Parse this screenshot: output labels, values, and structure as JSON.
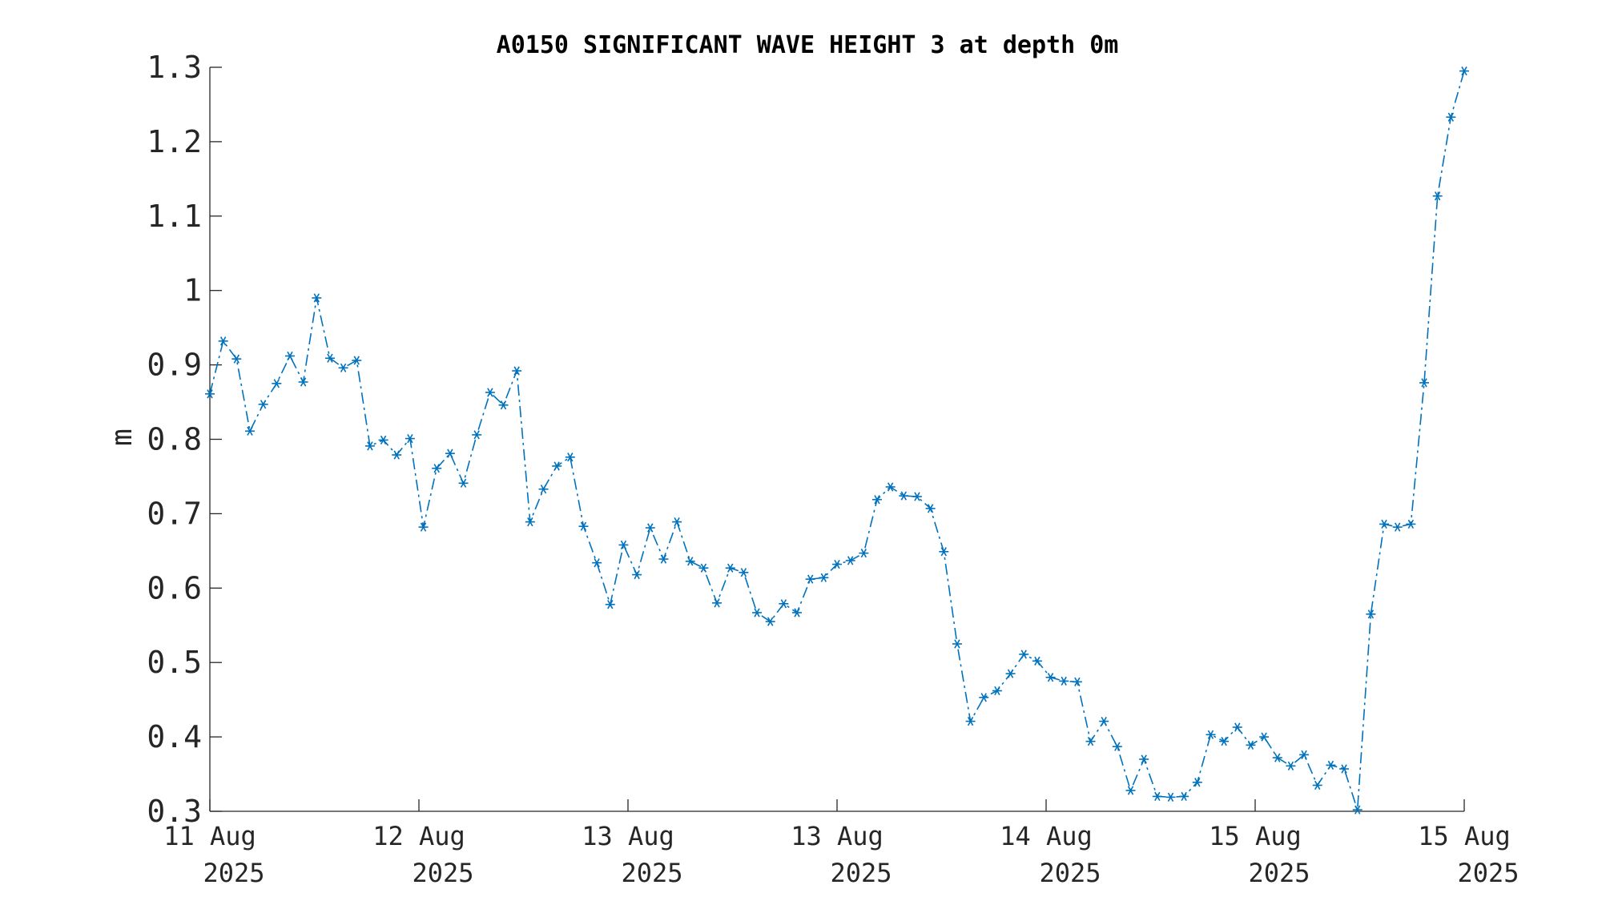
{
  "chart_data": {
    "type": "line",
    "title": "A0150 SIGNIFICANT WAVE HEIGHT 3 at depth 0m",
    "xlabel": "",
    "ylabel": "m",
    "ylim": [
      0.3,
      1.3
    ],
    "yticks": [
      "0.3",
      "0.4",
      "0.5",
      "0.6",
      "0.7",
      "0.8",
      "0.9",
      "1",
      "1.1",
      "1.2",
      "1.3"
    ],
    "xticks": [
      {
        "line1": "11 Aug",
        "line2": "2025"
      },
      {
        "line1": "12 Aug",
        "line2": "2025"
      },
      {
        "line1": "13 Aug",
        "line2": "2025"
      },
      {
        "line1": "13 Aug",
        "line2": "2025"
      },
      {
        "line1": "14 Aug",
        "line2": "2025"
      },
      {
        "line1": "15 Aug",
        "line2": "2025"
      },
      {
        "line1": "15 Aug",
        "line2": "2025"
      }
    ],
    "grid": false,
    "legend": "none",
    "marker": "asterisk",
    "line_style": "dash-dot",
    "color": "#0072BD",
    "series": [
      {
        "values": [
          0.861,
          0.932,
          0.908,
          0.811,
          0.847,
          0.875,
          0.912,
          0.877,
          0.99,
          0.909,
          0.896,
          0.906,
          0.791,
          0.799,
          0.779,
          0.801,
          0.682,
          0.761,
          0.781,
          0.741,
          0.806,
          0.863,
          0.846,
          0.892,
          0.689,
          0.733,
          0.764,
          0.776,
          0.683,
          0.634,
          0.578,
          0.658,
          0.618,
          0.681,
          0.639,
          0.689,
          0.636,
          0.627,
          0.58,
          0.627,
          0.621,
          0.567,
          0.555,
          0.579,
          0.567,
          0.612,
          0.614,
          0.632,
          0.637,
          0.647,
          0.719,
          0.736,
          0.724,
          0.723,
          0.707,
          0.649,
          0.525,
          0.421,
          0.453,
          0.462,
          0.485,
          0.511,
          0.502,
          0.48,
          0.475,
          0.474,
          0.394,
          0.421,
          0.387,
          0.328,
          0.37,
          0.32,
          0.319,
          0.32,
          0.339,
          0.403,
          0.394,
          0.413,
          0.389,
          0.4,
          0.372,
          0.361,
          0.376,
          0.335,
          0.362,
          0.357,
          0.302,
          0.565,
          0.686,
          0.682,
          0.686,
          0.876,
          1.127,
          1.233,
          1.295
        ]
      }
    ]
  }
}
